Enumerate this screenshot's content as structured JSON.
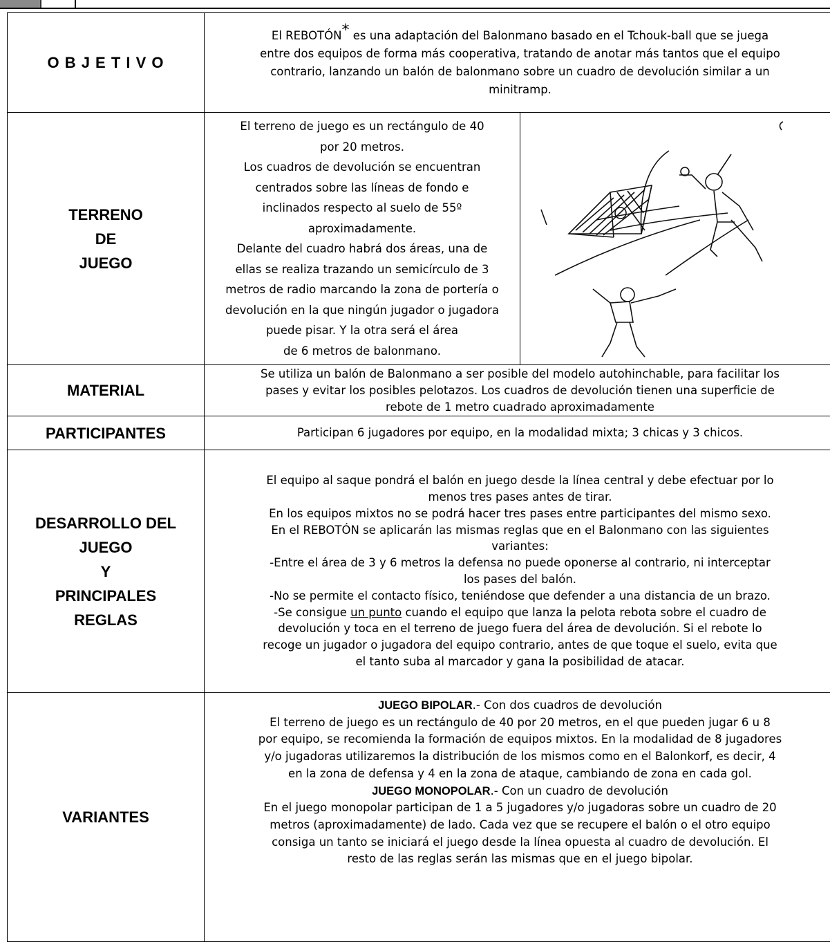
{
  "rows": [
    {
      "label": [
        "O B J E T I V O"
      ],
      "lines": [
        [
          "El REBOTÓN",
          "*",
          " es una adaptación del Balonmano basado en el Tchouk-ball que se juega"
        ],
        "entre dos equipos de forma más cooperativa, tratando de anotar más tantos que el equipo",
        "contrario, lanzando un balón de balonmano sobre un cuadro de devolución similar a un",
        "minitramp."
      ]
    },
    {
      "label": [
        "TERRENO",
        "DE",
        "JUEGO"
      ],
      "lines": [
        "El terreno de juego es un rectángulo de 40",
        "por 20 metros.",
        "Los cuadros de devolución se encuentran",
        "centrados sobre las líneas de fondo e",
        "inclinados respecto al suelo de 55º",
        "aproximadamente.",
        "Delante del cuadro habrá dos áreas, una de",
        "ellas se realiza trazando un semicírculo de 3",
        "metros de radio marcando la zona de portería o",
        "devolución en la que ningún jugador o jugadora",
        "puede pisar. Y la otra será el área",
        "de 6 metros de balonmano."
      ]
    },
    {
      "label": [
        "MATERIAL"
      ],
      "lines": [
        "Se utiliza un balón de Balonmano a ser posible del modelo autohinchable, para facilitar los",
        "pases y evitar los posibles pelotazos. Los cuadros de devolución tienen una superficie de",
        "rebote de 1 metro cuadrado aproximadamente"
      ]
    },
    {
      "label": [
        "PARTICIPANTES"
      ],
      "lines": [
        "Participan 6 jugadores por equipo, en la modalidad mixta; 3 chicas y 3 chicos."
      ]
    },
    {
      "label": [
        "DESARROLLO DEL",
        "JUEGO",
        "Y",
        "PRINCIPALES",
        "REGLAS"
      ],
      "lines": [
        "El equipo al saque pondrá el balón en juego desde la línea central y debe efectuar por lo",
        "menos tres pases antes de tirar.",
        "En los equipos mixtos no se podrá hacer tres pases entre participantes del mismo sexo.",
        "En el REBOTÓN se aplicarán las mismas reglas que en el Balonmano con las siguientes",
        "variantes:",
        "-Entre el área de 3 y 6 metros la defensa no puede oponerse al contrario, ni interceptar",
        "los pases del balón.",
        "-No se permite el contacto físico, teniéndose que defender a una distancia de un brazo.",
        [
          "-Se consigue ",
          "un punto",
          " cuando el equipo que lanza la pelota rebota sobre el cuadro de"
        ],
        "devolución y toca en el terreno de juego fuera del área de devolución. Si el rebote lo",
        "recoge un jugador o jugadora del equipo contrario, antes de que toque el suelo, evita que",
        "el tanto suba al marcador y gana la posibilidad de atacar."
      ]
    },
    {
      "label": [
        "VARIANTES"
      ],
      "lines": [
        [
          "JUEGO BIPOLAR",
          ".- Con dos cuadros de devolución"
        ],
        "El terreno de juego es un rectángulo de 40 por 20 metros, en el que pueden jugar 6 u 8",
        "por equipo, se recomienda la formación de equipos mixtos. En la modalidad de 8 jugadores",
        "y/o jugadoras utilizaremos la distribución de los mismos como en el Balonkorf, es decir, 4",
        "en la zona de defensa y 4 en la zona de ataque, cambiando de zona en cada gol.",
        [
          "JUEGO MONOPOLAR",
          ".- Con un cuadro de devolución"
        ],
        "En el juego monopolar participan de 1 a 5 jugadores y/o jugadoras sobre un cuadro de 20",
        "metros (aproximadamente) de lado. Cada vez que se recupere el balón o el otro equipo",
        "consiga un tanto se iniciará el juego desde la línea opuesta al cuadro de devolución. El",
        "resto de las reglas serán las mismas que en el juego bipolar."
      ]
    }
  ]
}
